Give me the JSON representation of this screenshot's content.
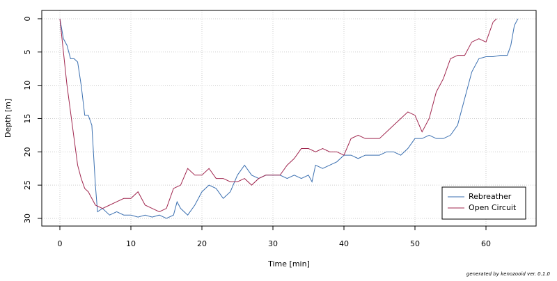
{
  "chart_data": {
    "type": "line",
    "x_label": "Time [min]",
    "y_label": "Depth [m]",
    "footer": "generated by kenozooid ver. 0.1.0",
    "xlim": [
      -2.55,
      67.06
    ],
    "xticks": [
      0,
      10,
      20,
      30,
      40,
      50,
      60
    ],
    "ylim": [
      -1.25,
      31.15
    ],
    "yticks": [
      0,
      5,
      10,
      15,
      20,
      25,
      30
    ],
    "y_inverted": true,
    "grid": true,
    "legend": "bottom-right",
    "series": [
      {
        "name": "Rebreather",
        "color": "#3a6fb0",
        "x": [
          0,
          0.5,
          1,
          1.5,
          2,
          2.5,
          3,
          3.5,
          4,
          4.5,
          5,
          5.3,
          6,
          7,
          8,
          9,
          10,
          11,
          12,
          13,
          14,
          15,
          16,
          16.5,
          17,
          18,
          19,
          20,
          21,
          22,
          23,
          24,
          25,
          26,
          27,
          28,
          29,
          30,
          31,
          32,
          33,
          34,
          35,
          35.5,
          36,
          37,
          38,
          39,
          40,
          41,
          42,
          43,
          44,
          45,
          46,
          47,
          48,
          49,
          50,
          51,
          52,
          53,
          54,
          55,
          56,
          57,
          58,
          59,
          60,
          61,
          62,
          63,
          63.5,
          64,
          64.5
        ],
        "values": [
          0,
          3,
          4,
          6,
          6,
          6.5,
          10,
          14.5,
          14.5,
          16,
          25,
          29,
          28.5,
          29.5,
          29,
          29.5,
          29.5,
          29.8,
          29.5,
          29.8,
          29.5,
          30,
          29.5,
          27.5,
          28.5,
          29.5,
          28,
          26,
          25,
          25.5,
          27,
          26,
          23.5,
          22,
          23.5,
          24,
          23.5,
          23.5,
          23.5,
          24,
          23.5,
          24,
          23.5,
          24.5,
          22,
          22.5,
          22,
          21.5,
          20.5,
          20.5,
          21,
          20.5,
          20.5,
          20.5,
          20,
          20,
          20.5,
          19.5,
          18,
          18,
          17.5,
          18,
          18,
          17.5,
          16,
          12,
          8,
          6,
          5.7,
          5.7,
          5.5,
          5.5,
          4,
          1,
          0
        ]
      },
      {
        "name": "Open Circuit",
        "color": "#a0264e",
        "x": [
          0,
          0.5,
          1,
          1.5,
          2,
          2.5,
          3,
          3.5,
          4,
          5,
          6,
          7,
          8,
          9,
          10,
          11,
          12,
          13,
          14,
          15,
          16,
          17,
          18,
          19,
          20,
          21,
          22,
          23,
          24,
          25,
          26,
          27,
          28,
          29,
          30,
          31,
          32,
          33,
          34,
          35,
          36,
          37,
          38,
          39,
          40,
          41,
          42,
          43,
          44,
          45,
          46,
          47,
          48,
          49,
          50,
          51,
          52,
          53,
          54,
          55,
          56,
          57,
          58,
          59,
          60,
          61,
          61.5
        ],
        "values": [
          0,
          5,
          10,
          14,
          18,
          22,
          24,
          25.5,
          26,
          28,
          28.5,
          28,
          27.5,
          27,
          27,
          26,
          28,
          28.5,
          29,
          28.5,
          25.5,
          25,
          22.5,
          23.5,
          23.5,
          22.5,
          24,
          24,
          24.5,
          24.5,
          24,
          25,
          24,
          23.5,
          23.5,
          23.5,
          22,
          21,
          19.5,
          19.5,
          20,
          19.5,
          20,
          20,
          20.5,
          18,
          17.5,
          18,
          18,
          18,
          17,
          16,
          15,
          14,
          14.5,
          17,
          15,
          11,
          9,
          6,
          5.5,
          5.5,
          3.5,
          3,
          3.5,
          0.5,
          0
        ]
      }
    ]
  }
}
